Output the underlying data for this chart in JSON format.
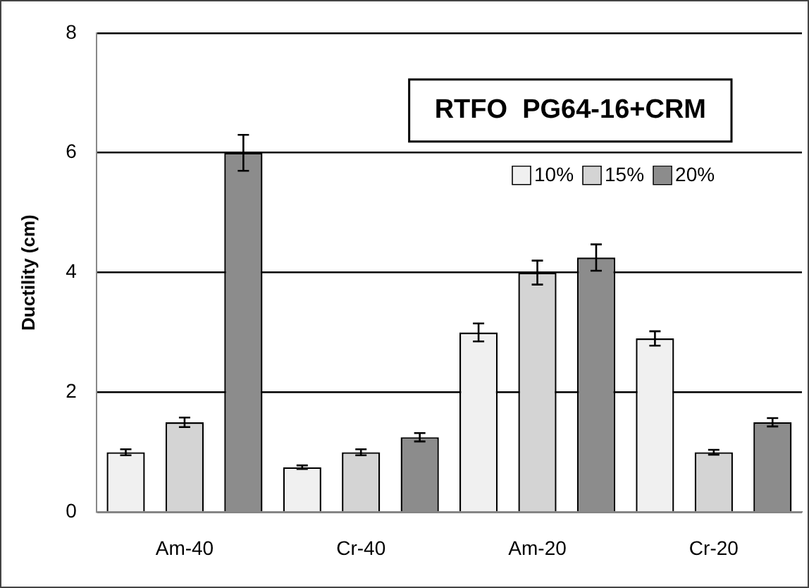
{
  "chart_data": {
    "type": "bar",
    "title": "RTFO  PG64-16+CRM",
    "ylabel": "Ductility (cm)",
    "categories": [
      "Am-40",
      "Cr-40",
      "Am-20",
      "Cr-20"
    ],
    "series": [
      {
        "name": "10%",
        "color": "#f0f0f0",
        "values": [
          1.0,
          0.75,
          3.0,
          2.9
        ],
        "errors": [
          0.05,
          0.03,
          0.15,
          0.12
        ]
      },
      {
        "name": "15%",
        "color": "#d4d4d4",
        "values": [
          1.5,
          1.0,
          4.0,
          1.0
        ],
        "errors": [
          0.08,
          0.05,
          0.2,
          0.04
        ]
      },
      {
        "name": "20%",
        "color": "#8c8c8c",
        "values": [
          6.0,
          1.25,
          4.25,
          1.5
        ],
        "errors": [
          0.3,
          0.07,
          0.22,
          0.07
        ]
      }
    ],
    "ylim": [
      0,
      8
    ],
    "yticks": [
      0,
      2,
      4,
      6,
      8
    ],
    "grid": "y",
    "legend": "top right"
  }
}
